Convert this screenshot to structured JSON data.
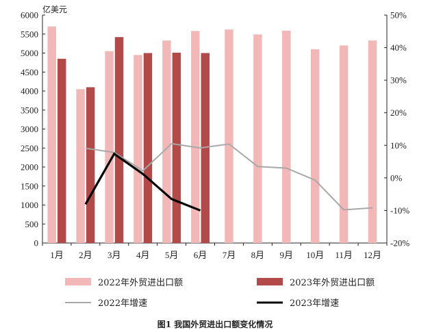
{
  "chart_data": {
    "type": "bar",
    "unit_label": "亿美元",
    "caption": "图1  我国外贸进出口额变化情况",
    "categories": [
      "1月",
      "2月",
      "3月",
      "4月",
      "5月",
      "6月",
      "7月",
      "8月",
      "9月",
      "10月",
      "11月",
      "12月"
    ],
    "left_axis": {
      "ylim": [
        0,
        6000
      ],
      "ticks": [
        0,
        500,
        1000,
        1500,
        2000,
        2500,
        3000,
        3500,
        4000,
        4500,
        5000,
        5500,
        6000
      ]
    },
    "right_axis": {
      "ylim": [
        -20,
        50
      ],
      "ticks": [
        -20,
        -10,
        0,
        10,
        20,
        30,
        40,
        50
      ],
      "tick_labels": [
        "-20%",
        "-10%",
        "0%",
        "10%",
        "20%",
        "30%",
        "40%",
        "50%"
      ]
    },
    "series": [
      {
        "name": "2022年外贸进出口额",
        "kind": "bar",
        "axis": "left",
        "color": "#f2b8b8",
        "values": [
          5700,
          4050,
          5050,
          4950,
          5330,
          5580,
          5620,
          5490,
          5590,
          5100,
          5200,
          5330
        ]
      },
      {
        "name": "2023年外贸进出口额",
        "kind": "bar",
        "axis": "left",
        "color": "#b24a4a",
        "values": [
          4850,
          4100,
          5420,
          5000,
          5010,
          5000,
          null,
          null,
          null,
          null,
          null,
          null
        ]
      },
      {
        "name": "2022年增速",
        "kind": "line",
        "axis": "right",
        "color": "#a8a8a8",
        "values": [
          null,
          9.1,
          7.8,
          2.2,
          10.5,
          9.2,
          10.4,
          3.5,
          3.0,
          -0.7,
          -9.8,
          -9.2
        ]
      },
      {
        "name": "2023年增速",
        "kind": "line",
        "axis": "right",
        "color": "#000000",
        "values": [
          null,
          -8.1,
          7.4,
          1.2,
          -6.5,
          -10.0,
          null,
          null,
          null,
          null,
          null,
          null
        ]
      }
    ],
    "legend_position": "bottom",
    "grid": false
  }
}
